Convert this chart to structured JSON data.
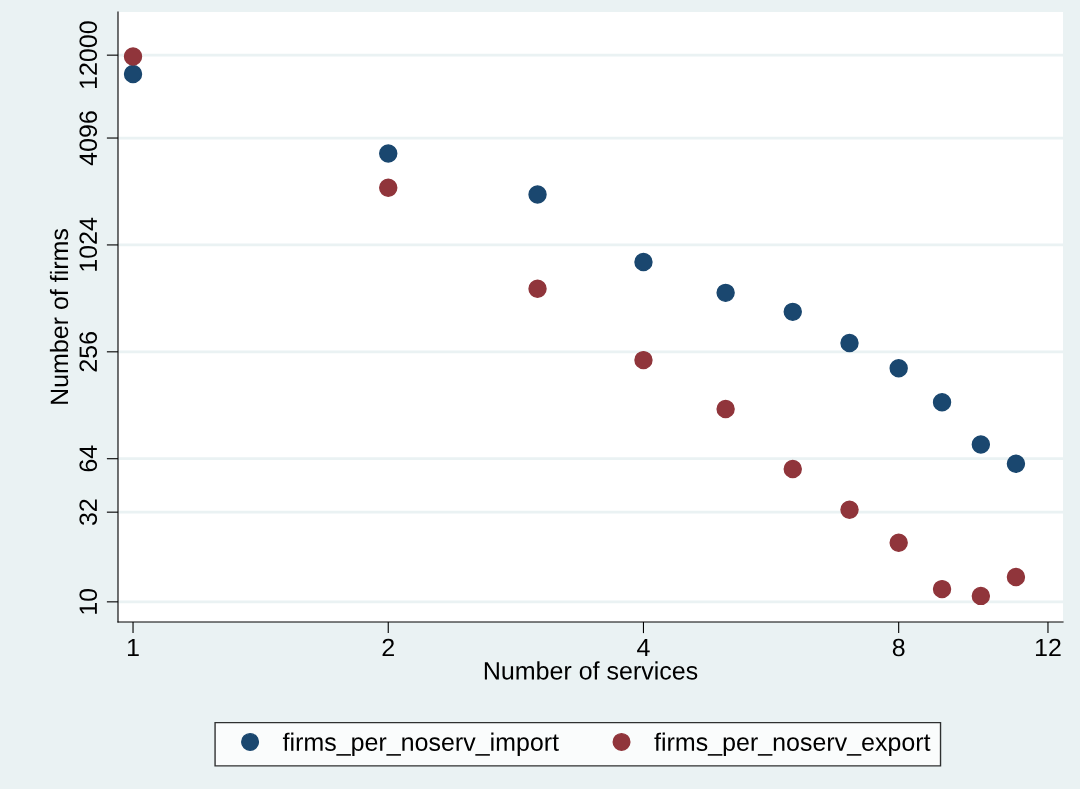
{
  "chart_data": {
    "type": "scatter",
    "xlabel": "Number of services",
    "ylabel": "Number of firms",
    "x": [
      1,
      2,
      3,
      4,
      5,
      6,
      7,
      8,
      9,
      10,
      11
    ],
    "series": [
      {
        "name": "firms_per_noserv_import",
        "color": "#1a476f",
        "values": [
          9400,
          3350,
          1970,
          820,
          550,
          430,
          287,
          207,
          133,
          77,
          60
        ]
      },
      {
        "name": "firms_per_noserv_export",
        "color": "#90353b",
        "values": [
          11800,
          2150,
          580,
          230,
          122,
          56,
          33,
          21.5,
          11.8,
          10.8,
          13.8
        ]
      }
    ],
    "log": "xy",
    "xlim": [
      0.96,
      12.5
    ],
    "ylim": [
      7.7,
      21000
    ],
    "xticks": [
      1,
      2,
      4,
      8,
      12
    ],
    "yticks": [
      10,
      32,
      64,
      256,
      1024,
      4096,
      12000
    ],
    "grid": "y",
    "legend": "bottom",
    "marker": "circle"
  }
}
